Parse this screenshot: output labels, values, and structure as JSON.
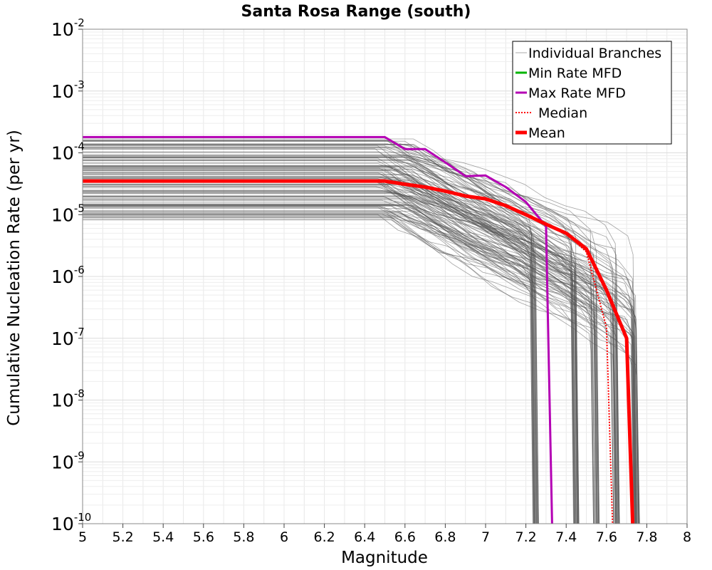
{
  "chart_data": {
    "type": "line",
    "title": "Santa Rosa Range (south)",
    "xlabel": "Magnitude",
    "ylabel": "Cumulative Nucleation Rate (per yr)",
    "x_scale": "linear",
    "y_scale": "log",
    "xlim": [
      5,
      8
    ],
    "ylim": [
      1e-10,
      0.01
    ],
    "grid": true,
    "legend_position": "top-right",
    "x_ticks": [
      "5",
      "5.2",
      "5.4",
      "5.6",
      "5.8",
      "6",
      "6.2",
      "6.4",
      "6.6",
      "6.8",
      "7",
      "7.2",
      "7.4",
      "7.6",
      "7.8",
      "8"
    ],
    "y_ticks": [
      {
        "value": 1e-10,
        "base": "10",
        "exp": "-10"
      },
      {
        "value": 1e-09,
        "base": "10",
        "exp": "-9"
      },
      {
        "value": 1e-08,
        "base": "10",
        "exp": "-8"
      },
      {
        "value": 1e-07,
        "base": "10",
        "exp": "-7"
      },
      {
        "value": 1e-06,
        "base": "10",
        "exp": "-6"
      },
      {
        "value": 1e-05,
        "base": "10",
        "exp": "-5"
      },
      {
        "value": 0.0001,
        "base": "10",
        "exp": "-4"
      },
      {
        "value": 0.001,
        "base": "10",
        "exp": "-3"
      },
      {
        "value": 0.01,
        "base": "10",
        "exp": "-2"
      }
    ],
    "legend": [
      {
        "label": "Individual Branches",
        "color": "#aaaaaa",
        "style": "thin"
      },
      {
        "label": "Min Rate MFD",
        "color": "#00b400",
        "style": "solid"
      },
      {
        "label": "Max Rate MFD",
        "color": "#b400b4",
        "style": "solid"
      },
      {
        "label": "Median",
        "color": "#ff0000",
        "style": "dotted"
      },
      {
        "label": "Mean",
        "color": "#ff0000",
        "style": "thick"
      }
    ],
    "series": [
      {
        "name": "Max Rate MFD",
        "color": "#b400b4",
        "x": [
          5.0,
          6.5,
          6.6,
          6.7,
          6.8,
          6.9,
          7.0,
          7.1,
          7.2,
          7.3,
          7.33
        ],
        "y": [
          0.00018,
          0.00018,
          0.000115,
          0.000115,
          7e-05,
          4.2e-05,
          4.3e-05,
          2.8e-05,
          1.6e-05,
          6.5e-06,
          1e-10
        ]
      },
      {
        "name": "Median",
        "color": "#ff0000",
        "x": [
          5.0,
          6.5,
          6.6,
          6.7,
          6.8,
          6.9,
          7.0,
          7.1,
          7.2,
          7.3,
          7.4,
          7.5,
          7.6,
          7.63
        ],
        "y": [
          3.4e-05,
          3.4e-05,
          3e-05,
          2.8e-05,
          2.4e-05,
          2e-05,
          1.8e-05,
          1.4e-05,
          1e-05,
          7e-06,
          5e-06,
          2.5e-06,
          1.5e-07,
          1e-10
        ]
      },
      {
        "name": "Mean",
        "color": "#ff0000",
        "x": [
          5.0,
          6.5,
          6.6,
          6.7,
          6.8,
          6.9,
          7.0,
          7.1,
          7.2,
          7.3,
          7.4,
          7.5,
          7.6,
          7.7,
          7.73
        ],
        "y": [
          3.5e-05,
          3.5e-05,
          3.1e-05,
          2.8e-05,
          2.4e-05,
          2e-05,
          1.8e-05,
          1.4e-05,
          1e-05,
          7e-06,
          5e-06,
          2.8e-06,
          6e-07,
          1e-07,
          1e-10
        ]
      }
    ],
    "branches": {
      "color": "#555555",
      "y_at_min_x_range": [
        8e-06,
        0.00017
      ],
      "cutoff_magnitudes": [
        7.25,
        7.45,
        7.55,
        7.65,
        7.75
      ]
    }
  }
}
